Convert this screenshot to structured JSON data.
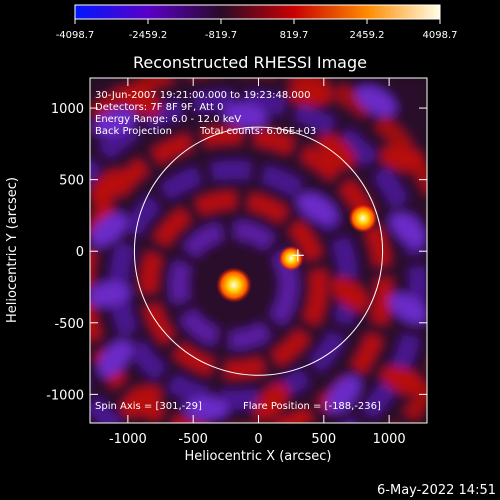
{
  "chart_data": {
    "type": "heatmap",
    "title": "Reconstructed RHESSI Image",
    "xlabel": "Heliocentric X (arcsec)",
    "ylabel": "Heliocentric Y (arcsec)",
    "xlim": [
      -1290,
      1290
    ],
    "ylim": [
      -1200,
      1210
    ],
    "x_ticks": [
      "-1000",
      "-500",
      "0",
      "500",
      "1000"
    ],
    "x_tick_values": [
      -1000,
      -500,
      0,
      500,
      1000
    ],
    "y_ticks": [
      "1000",
      "500",
      "0",
      "-500",
      "-1000"
    ],
    "y_tick_values": [
      1000,
      500,
      0,
      -500,
      -1000
    ],
    "colorbar": {
      "range": [
        -4098.7,
        4098.7
      ],
      "tick_labels": [
        "-4098.7",
        "-2459.2",
        "-819.7",
        "819.7",
        "2459.2",
        "4098.7"
      ],
      "colors": [
        "#0018ff",
        "#5a00c8",
        "#2a0a2a",
        "#c80000",
        "#ff8a00",
        "#ffffe6"
      ]
    },
    "annotations": [
      "30-Jun-2007 19:21:00.000 to 19:23:48.000",
      "Detectors: 7F 8F 9F, Att 0",
      "Energy Range: 6.0 - 12.0 keV",
      "Back Projection",
      "Total counts: 6.06E+03",
      "Spin Axis = [301,-29]",
      "Flare Position = [-188,-236]"
    ],
    "solar_limb_radius_arcsec": 950,
    "spin_axis": [
      301,
      -29
    ],
    "flare_position": [
      -188,
      -236
    ],
    "sources": [
      {
        "x": -188,
        "y": -236,
        "intensity": 4098.7
      },
      {
        "x": 800,
        "y": 230,
        "intensity": 2800
      },
      {
        "x": 250,
        "y": -50,
        "intensity": 2000
      }
    ]
  },
  "footer": {
    "date": "6-May-2022 14:51"
  }
}
